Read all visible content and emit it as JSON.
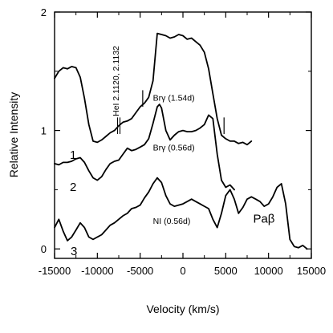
{
  "chart_data": {
    "type": "line",
    "xlabel": "Velocity (km/s)",
    "ylabel": "Relative Intensity",
    "xlim": [
      -15000,
      15000
    ],
    "ylim": [
      -0.08,
      2.0
    ],
    "x_ticks": [
      -15000,
      -10000,
      -5000,
      0,
      5000,
      10000,
      15000
    ],
    "x_tick_labels": [
      "-15000",
      "-10000",
      "-5000",
      "0",
      "5000",
      "10000",
      "15000"
    ],
    "y_ticks": [
      0,
      1,
      2
    ],
    "y_tick_labels": [
      "0",
      "1",
      "2"
    ],
    "grid": false,
    "series": [
      {
        "label": "1",
        "x": [
          -15000,
          -14500,
          -14000,
          -13500,
          -13000,
          -12500,
          -12000,
          -11500,
          -11000,
          -10500,
          -10000,
          -9500,
          -9000,
          -8500,
          -8000,
          -7500,
          -7000,
          -6500,
          -6000,
          -5500,
          -5000,
          -4500,
          -4000,
          -3500,
          -3000,
          -2500,
          -2000,
          -1500,
          -1000,
          -500,
          0,
          500,
          1000,
          1500,
          2000,
          2500,
          3000,
          3500,
          4000,
          4500,
          5000,
          5500,
          6000,
          6500,
          7000,
          7500,
          8000
        ],
        "y": [
          1.44,
          1.5,
          1.53,
          1.52,
          1.54,
          1.53,
          1.45,
          1.27,
          1.05,
          0.91,
          0.9,
          0.92,
          0.95,
          0.98,
          1.0,
          1.04,
          1.07,
          1.08,
          1.1,
          1.15,
          1.2,
          1.23,
          1.28,
          1.42,
          1.82,
          1.81,
          1.8,
          1.78,
          1.79,
          1.81,
          1.8,
          1.77,
          1.78,
          1.75,
          1.72,
          1.66,
          1.52,
          1.31,
          1.1,
          0.96,
          0.93,
          0.91,
          0.91,
          0.89,
          0.9,
          0.88,
          0.91
        ]
      },
      {
        "label": "2",
        "x": [
          -15000,
          -14500,
          -14000,
          -13500,
          -13000,
          -12500,
          -12000,
          -11500,
          -11000,
          -10500,
          -10000,
          -9500,
          -9000,
          -8500,
          -8000,
          -7500,
          -7000,
          -6500,
          -6000,
          -5500,
          -5000,
          -4500,
          -4000,
          -3500,
          -3000,
          -2750,
          -2500,
          -2000,
          -1500,
          -1000,
          -500,
          0,
          500,
          1000,
          1500,
          2000,
          2500,
          3000,
          3500,
          4000,
          4500,
          5000,
          5500,
          6000
        ],
        "y": [
          0.72,
          0.71,
          0.73,
          0.73,
          0.74,
          0.76,
          0.77,
          0.73,
          0.66,
          0.6,
          0.58,
          0.61,
          0.67,
          0.72,
          0.74,
          0.75,
          0.8,
          0.85,
          0.83,
          0.84,
          0.86,
          0.88,
          0.93,
          1.06,
          1.2,
          1.22,
          1.19,
          1.0,
          0.92,
          0.96,
          0.99,
          1.0,
          0.99,
          0.99,
          1.0,
          1.02,
          1.05,
          1.13,
          1.1,
          0.8,
          0.58,
          0.52,
          0.54,
          0.5
        ]
      },
      {
        "label": "3",
        "x": [
          -15000,
          -14500,
          -14000,
          -13500,
          -13000,
          -12500,
          -12000,
          -11500,
          -11000,
          -10500,
          -10000,
          -9500,
          -9000,
          -8500,
          -8000,
          -7500,
          -7000,
          -6500,
          -6000,
          -5500,
          -5000,
          -4500,
          -4000,
          -3500,
          -3000,
          -2500,
          -2000,
          -1500,
          -1000,
          -500,
          0,
          500,
          1000,
          1500,
          2000,
          2500,
          3000,
          3500,
          4000,
          4500,
          5000,
          5500,
          6000,
          6500,
          7000,
          7500,
          8000,
          8500,
          9000,
          9500,
          10000,
          10500,
          11000,
          11500,
          12000,
          12500,
          13000,
          13500,
          14000,
          14500
        ],
        "y": [
          0.18,
          0.25,
          0.15,
          0.07,
          0.1,
          0.16,
          0.22,
          0.18,
          0.1,
          0.08,
          0.1,
          0.12,
          0.16,
          0.2,
          0.22,
          0.25,
          0.28,
          0.3,
          0.34,
          0.35,
          0.37,
          0.43,
          0.48,
          0.55,
          0.6,
          0.56,
          0.45,
          0.38,
          0.36,
          0.37,
          0.38,
          0.4,
          0.42,
          0.4,
          0.38,
          0.36,
          0.34,
          0.25,
          0.18,
          0.3,
          0.45,
          0.5,
          0.42,
          0.3,
          0.35,
          0.42,
          0.44,
          0.42,
          0.4,
          0.36,
          0.38,
          0.44,
          0.52,
          0.55,
          0.38,
          0.08,
          0.02,
          0.01,
          0.03,
          0.0
        ]
      }
    ],
    "annotations": [
      {
        "text": "HeI 2.1120, 2.1132",
        "x": -7500,
        "y": 1.12,
        "rotation": -90
      },
      {
        "text": "Brγ (1.54d)",
        "x": -3500,
        "y": 1.25
      },
      {
        "text": "Brγ (0.56d)",
        "x": -3500,
        "y": 0.83
      },
      {
        "text": "NI (0.56d)",
        "x": -3500,
        "y": 0.21
      },
      {
        "text": "Paβ",
        "x": 8200,
        "y": 0.22
      }
    ],
    "markers": [
      {
        "x": -4700,
        "y_from": 1.2,
        "y_to": 1.34
      },
      {
        "x": 4800,
        "y_from": 0.97,
        "y_to": 1.11
      }
    ]
  }
}
